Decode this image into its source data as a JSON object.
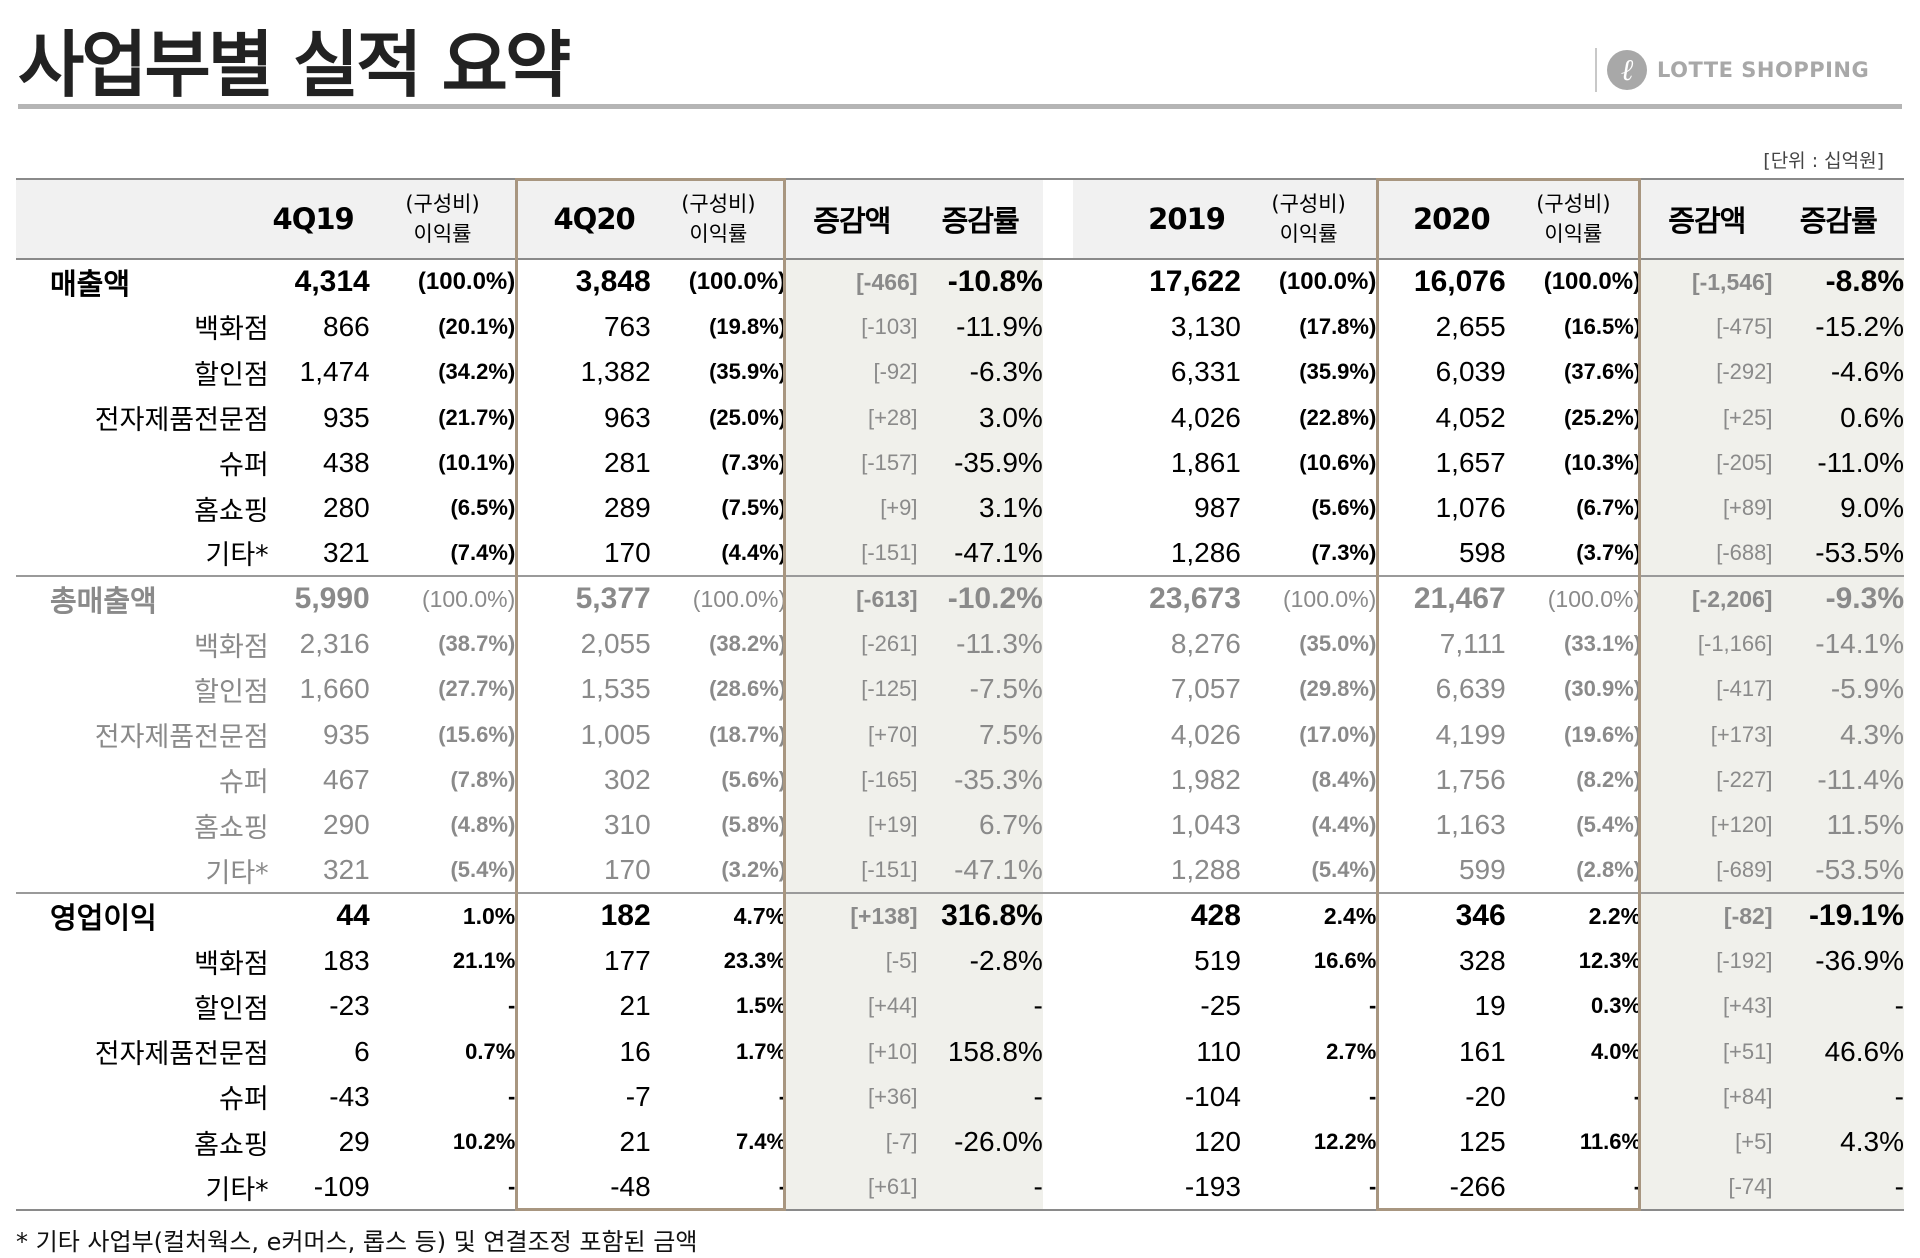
{
  "title": "사업부별 실적 요약",
  "logo": {
    "mark": "ℓ",
    "text": "LOTTE SHOPPING"
  },
  "unit": "[단위 : 십억원]",
  "headers": {
    "q_prev": "4Q19",
    "comp_line1": "(구성비)",
    "comp_line2": "이익률",
    "q_curr": "4Q20",
    "change_amount": "증감액",
    "change_rate": "증감률",
    "y_prev": "2019",
    "y_curr": "2020"
  },
  "groups": [
    {
      "rows": [
        {
          "label": "매출액",
          "main": true,
          "v1": "4,314",
          "p1": "(100.0%)",
          "v2": "3,848",
          "p2": "(100.0%)",
          "c": "[-466]",
          "r": "-10.8%",
          "v3": "17,622",
          "p3": "(100.0%)",
          "v4": "16,076",
          "p4": "(100.0%)",
          "c2": "[-1,546]",
          "r2": "-8.8%"
        },
        {
          "label": "백화점",
          "v1": "866",
          "p1": "(20.1%)",
          "v2": "763",
          "p2": "(19.8%)",
          "c": "[-103]",
          "r": "-11.9%",
          "v3": "3,130",
          "p3": "(17.8%)",
          "v4": "2,655",
          "p4": "(16.5%)",
          "c2": "[-475]",
          "r2": "-15.2%"
        },
        {
          "label": "할인점",
          "v1": "1,474",
          "p1": "(34.2%)",
          "v2": "1,382",
          "p2": "(35.9%)",
          "c": "[-92]",
          "r": "-6.3%",
          "v3": "6,331",
          "p3": "(35.9%)",
          "v4": "6,039",
          "p4": "(37.6%)",
          "c2": "[-292]",
          "r2": "-4.6%"
        },
        {
          "label": "전자제품전문점",
          "v1": "935",
          "p1": "(21.7%)",
          "v2": "963",
          "p2": "(25.0%)",
          "c": "[+28]",
          "r": "3.0%",
          "v3": "4,026",
          "p3": "(22.8%)",
          "v4": "4,052",
          "p4": "(25.2%)",
          "c2": "[+25]",
          "r2": "0.6%"
        },
        {
          "label": "슈퍼",
          "v1": "438",
          "p1": "(10.1%)",
          "v2": "281",
          "p2": "(7.3%)",
          "c": "[-157]",
          "r": "-35.9%",
          "v3": "1,861",
          "p3": "(10.6%)",
          "v4": "1,657",
          "p4": "(10.3%)",
          "c2": "[-205]",
          "r2": "-11.0%"
        },
        {
          "label": "홈쇼핑",
          "v1": "280",
          "p1": "(6.5%)",
          "v2": "289",
          "p2": "(7.5%)",
          "c": "[+9]",
          "r": "3.1%",
          "v3": "987",
          "p3": "(5.6%)",
          "v4": "1,076",
          "p4": "(6.7%)",
          "c2": "[+89]",
          "r2": "9.0%"
        },
        {
          "label": "기타*",
          "v1": "321",
          "p1": "(7.4%)",
          "v2": "170",
          "p2": "(4.4%)",
          "c": "[-151]",
          "r": "-47.1%",
          "v3": "1,286",
          "p3": "(7.3%)",
          "v4": "598",
          "p4": "(3.7%)",
          "c2": "[-688]",
          "r2": "-53.5%"
        }
      ]
    },
    {
      "rows": [
        {
          "label": "총매출액",
          "main": true,
          "v1": "5,990",
          "p1": "(100.0%)",
          "v2": "5,377",
          "p2": "(100.0%)",
          "c": "[-613]",
          "r": "-10.2%",
          "v3": "23,673",
          "p3": "(100.0%)",
          "v4": "21,467",
          "p4": "(100.0%)",
          "c2": "[-2,206]",
          "r2": "-9.3%"
        },
        {
          "label": "백화점",
          "v1": "2,316",
          "p1": "(38.7%)",
          "v2": "2,055",
          "p2": "(38.2%)",
          "c": "[-261]",
          "r": "-11.3%",
          "v3": "8,276",
          "p3": "(35.0%)",
          "v4": "7,111",
          "p4": "(33.1%)",
          "c2": "[-1,166]",
          "r2": "-14.1%"
        },
        {
          "label": "할인점",
          "v1": "1,660",
          "p1": "(27.7%)",
          "v2": "1,535",
          "p2": "(28.6%)",
          "c": "[-125]",
          "r": "-7.5%",
          "v3": "7,057",
          "p3": "(29.8%)",
          "v4": "6,639",
          "p4": "(30.9%)",
          "c2": "[-417]",
          "r2": "-5.9%"
        },
        {
          "label": "전자제품전문점",
          "v1": "935",
          "p1": "(15.6%)",
          "v2": "1,005",
          "p2": "(18.7%)",
          "c": "[+70]",
          "r": "7.5%",
          "v3": "4,026",
          "p3": "(17.0%)",
          "v4": "4,199",
          "p4": "(19.6%)",
          "c2": "[+173]",
          "r2": "4.3%"
        },
        {
          "label": "슈퍼",
          "v1": "467",
          "p1": "(7.8%)",
          "v2": "302",
          "p2": "(5.6%)",
          "c": "[-165]",
          "r": "-35.3%",
          "v3": "1,982",
          "p3": "(8.4%)",
          "v4": "1,756",
          "p4": "(8.2%)",
          "c2": "[-227]",
          "r2": "-11.4%"
        },
        {
          "label": "홈쇼핑",
          "v1": "290",
          "p1": "(4.8%)",
          "v2": "310",
          "p2": "(5.8%)",
          "c": "[+19]",
          "r": "6.7%",
          "v3": "1,043",
          "p3": "(4.4%)",
          "v4": "1,163",
          "p4": "(5.4%)",
          "c2": "[+120]",
          "r2": "11.5%"
        },
        {
          "label": "기타*",
          "v1": "321",
          "p1": "(5.4%)",
          "v2": "170",
          "p2": "(3.2%)",
          "c": "[-151]",
          "r": "-47.1%",
          "v3": "1,288",
          "p3": "(5.4%)",
          "v4": "599",
          "p4": "(2.8%)",
          "c2": "[-689]",
          "r2": "-53.5%"
        }
      ]
    },
    {
      "rows": [
        {
          "label": "영업이익",
          "main": true,
          "v1": "44",
          "p1": "1.0%",
          "v2": "182",
          "p2": "4.7%",
          "c": "[+138]",
          "r": "316.8%",
          "v3": "428",
          "p3": "2.4%",
          "v4": "346",
          "p4": "2.2%",
          "c2": "[-82]",
          "r2": "-19.1%"
        },
        {
          "label": "백화점",
          "v1": "183",
          "p1": "21.1%",
          "v2": "177",
          "p2": "23.3%",
          "c": "[-5]",
          "r": "-2.8%",
          "v3": "519",
          "p3": "16.6%",
          "v4": "328",
          "p4": "12.3%",
          "c2": "[-192]",
          "r2": "-36.9%"
        },
        {
          "label": "할인점",
          "v1": "-23",
          "p1": "-",
          "v2": "21",
          "p2": "1.5%",
          "c": "[+44]",
          "r": "-",
          "v3": "-25",
          "p3": "-",
          "v4": "19",
          "p4": "0.3%",
          "c2": "[+43]",
          "r2": "-"
        },
        {
          "label": "전자제품전문점",
          "v1": "6",
          "p1": "0.7%",
          "v2": "16",
          "p2": "1.7%",
          "c": "[+10]",
          "r": "158.8%",
          "v3": "110",
          "p3": "2.7%",
          "v4": "161",
          "p4": "4.0%",
          "c2": "[+51]",
          "r2": "46.6%"
        },
        {
          "label": "슈퍼",
          "v1": "-43",
          "p1": "-",
          "v2": "-7",
          "p2": "-",
          "c": "[+36]",
          "r": "-",
          "v3": "-104",
          "p3": "-",
          "v4": "-20",
          "p4": "-",
          "c2": "[+84]",
          "r2": "-"
        },
        {
          "label": "홈쇼핑",
          "v1": "29",
          "p1": "10.2%",
          "v2": "21",
          "p2": "7.4%",
          "c": "[-7]",
          "r": "-26.0%",
          "v3": "120",
          "p3": "12.2%",
          "v4": "125",
          "p4": "11.6%",
          "c2": "[+5]",
          "r2": "4.3%"
        },
        {
          "label": "기타*",
          "v1": "-109",
          "p1": "-",
          "v2": "-48",
          "p2": "-",
          "c": "[+61]",
          "r": "-",
          "v3": "-193",
          "p3": "-",
          "v4": "-266",
          "p4": "-",
          "c2": "[-74]",
          "r2": "-"
        }
      ]
    }
  ],
  "footnote": "* 기타 사업부(컬처웍스, e커머스, 롭스 등) 및 연결조정 포함된 금액"
}
